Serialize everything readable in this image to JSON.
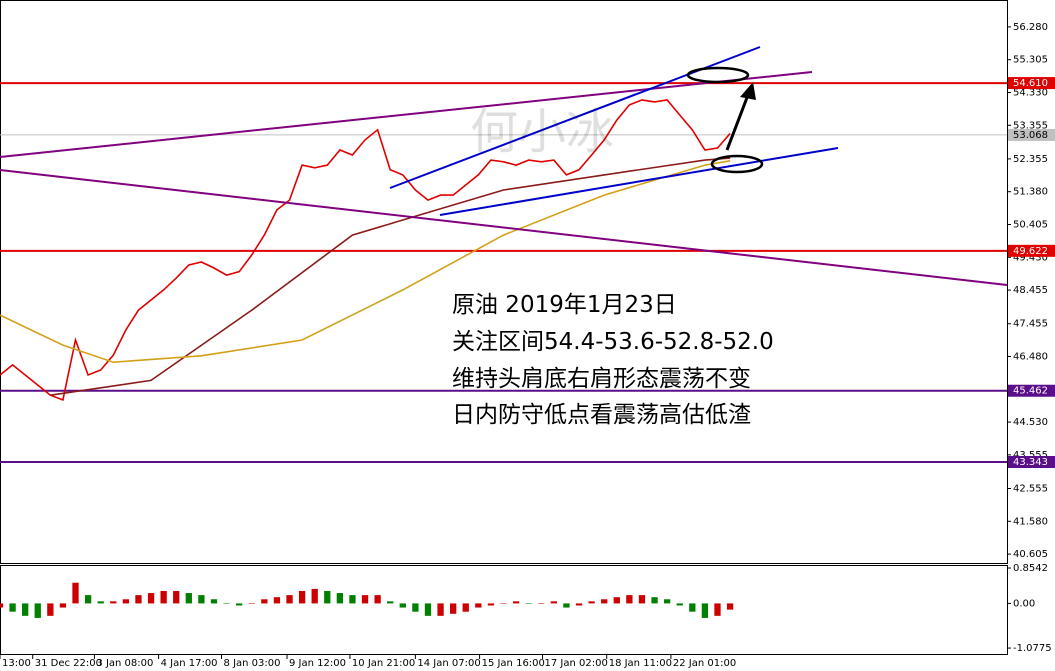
{
  "chart_data": [
    {
      "type": "line",
      "ylim": [
        40.34,
        57.08
      ],
      "yticks": [
        {
          "value": 56.28,
          "label": "56.280"
        },
        {
          "value": 55.305,
          "label": "55.305"
        },
        {
          "value": 54.33,
          "label": "54.330"
        },
        {
          "value": 53.355,
          "label": "53.355"
        },
        {
          "value": 52.355,
          "label": "52.355"
        },
        {
          "value": 51.38,
          "label": "51.380"
        },
        {
          "value": 50.405,
          "label": "50.405"
        },
        {
          "value": 49.43,
          "label": "49.430"
        },
        {
          "value": 48.455,
          "label": "48.455"
        },
        {
          "value": 47.455,
          "label": "47.455"
        },
        {
          "value": 46.48,
          "label": "46.480"
        },
        {
          "value": 44.53,
          "label": "44.530"
        },
        {
          "value": 43.555,
          "label": "43.555"
        },
        {
          "value": 42.555,
          "label": "42.555"
        },
        {
          "value": 41.58,
          "label": "41.580"
        },
        {
          "value": 40.605,
          "label": "40.605"
        }
      ],
      "xlim": [
        0,
        80
      ],
      "xticks": [
        {
          "value": 0,
          "label": "13:00"
        },
        {
          "value": 2.6,
          "label": "31 Dec 22:00"
        },
        {
          "value": 7.5,
          "label": "3 Jan 08:00"
        },
        {
          "value": 12.6,
          "label": "4 Jan 17:00"
        },
        {
          "value": 17.6,
          "label": "8 Jan 03:00"
        },
        {
          "value": 22.8,
          "label": "9 Jan 12:00"
        },
        {
          "value": 27.8,
          "label": "10 Jan 21:00"
        },
        {
          "value": 33.0,
          "label": "14 Jan 07:00"
        },
        {
          "value": 38.1,
          "label": "15 Jan 16:00"
        },
        {
          "value": 43.1,
          "label": "17 Jan 02:00"
        },
        {
          "value": 48.2,
          "label": "18 Jan 11:00"
        },
        {
          "value": 53.3,
          "label": "22 Jan 01:00"
        }
      ],
      "series": [
        {
          "color": "#e00000",
          "x": [
            0,
            1,
            2,
            3,
            4,
            5,
            6,
            7,
            8,
            9,
            10,
            11,
            12,
            13,
            14,
            15,
            16,
            17,
            18,
            19,
            20,
            21,
            22,
            23,
            24,
            25,
            26,
            27,
            28,
            29,
            30,
            31,
            32,
            33,
            34,
            35,
            36,
            37,
            38,
            39,
            40,
            41,
            42,
            43,
            44,
            45,
            46,
            47,
            48,
            49,
            50,
            51,
            52,
            53,
            54,
            55,
            56,
            57,
            58
          ],
          "values": [
            45.93,
            46.23,
            45.93,
            45.63,
            45.33,
            45.19,
            46.97,
            45.93,
            46.08,
            46.52,
            47.27,
            47.86,
            48.16,
            48.46,
            48.81,
            49.2,
            49.29,
            49.11,
            48.9,
            49.0,
            49.5,
            50.09,
            50.84,
            51.13,
            52.17,
            52.09,
            52.17,
            52.62,
            52.47,
            52.92,
            53.22,
            52.03,
            51.88,
            51.43,
            51.13,
            51.28,
            51.28,
            51.58,
            51.88,
            52.32,
            52.27,
            52.17,
            52.32,
            52.27,
            52.32,
            51.88,
            52.03,
            52.47,
            52.92,
            53.51,
            53.96,
            54.11,
            54.05,
            54.11,
            53.66,
            53.22,
            52.62,
            52.68,
            53.11
          ]
        },
        {
          "color": "#8b1a1a",
          "x": [
            4,
            12,
            20,
            28,
            32,
            40,
            48,
            56,
            58
          ],
          "values": [
            45.33,
            45.77,
            47.86,
            50.09,
            50.54,
            51.43,
            51.88,
            52.32,
            52.38
          ]
        },
        {
          "color": "#d4a017",
          "x": [
            0,
            5,
            9,
            16,
            24,
            32,
            40,
            48,
            56,
            58
          ],
          "values": [
            47.71,
            46.82,
            46.31,
            46.5,
            46.97,
            48.46,
            50.09,
            51.28,
            52.17,
            52.3
          ]
        }
      ],
      "levels": [
        {
          "value": 54.61,
          "label": "54.610",
          "color": "#e00000"
        },
        {
          "value": 49.622,
          "label": "49.622",
          "color": "#e00000"
        },
        {
          "value": 45.462,
          "label": "45.462",
          "color": "#5b0e8a"
        },
        {
          "value": 43.343,
          "label": "43.343",
          "color": "#5b0e8a"
        },
        {
          "value": 53.068,
          "label": "53.068",
          "color": "#c0c0c0"
        }
      ],
      "annotations": [
        "原油 2019年1月23日",
        "关注区间54.4-53.6-52.8-52.0",
        "维持头肩底右肩形态震荡不变",
        "日内防守低点看震荡高估低渣"
      ],
      "watermark": "何小冰"
    },
    {
      "type": "bar",
      "ylim": [
        -1.245,
        0.927
      ],
      "yticks": [
        0.8542,
        {
          "value": 0,
          "label": "0.00"
        },
        -1.0775
      ],
      "xlim": [
        0,
        80
      ],
      "values": [
        -0.1,
        -0.2,
        -0.3,
        -0.35,
        -0.3,
        -0.1,
        0.5,
        0.2,
        0.05,
        0.05,
        0.1,
        0.2,
        0.25,
        0.3,
        0.3,
        0.25,
        0.2,
        0.1,
        0,
        -0.05,
        0,
        0.1,
        0.15,
        0.2,
        0.3,
        0.35,
        0.3,
        0.25,
        0.2,
        0.2,
        0.2,
        0.05,
        -0.1,
        -0.2,
        -0.3,
        -0.3,
        -0.25,
        -0.2,
        -0.1,
        -0.05,
        0,
        0.05,
        0,
        0,
        0.05,
        -0.1,
        -0.05,
        0.05,
        0.1,
        0.15,
        0.2,
        0.2,
        0.15,
        0.1,
        -0.05,
        -0.2,
        -0.35,
        -0.3,
        -0.15
      ],
      "colors": [
        "#cc0000",
        "#008000"
      ]
    }
  ]
}
